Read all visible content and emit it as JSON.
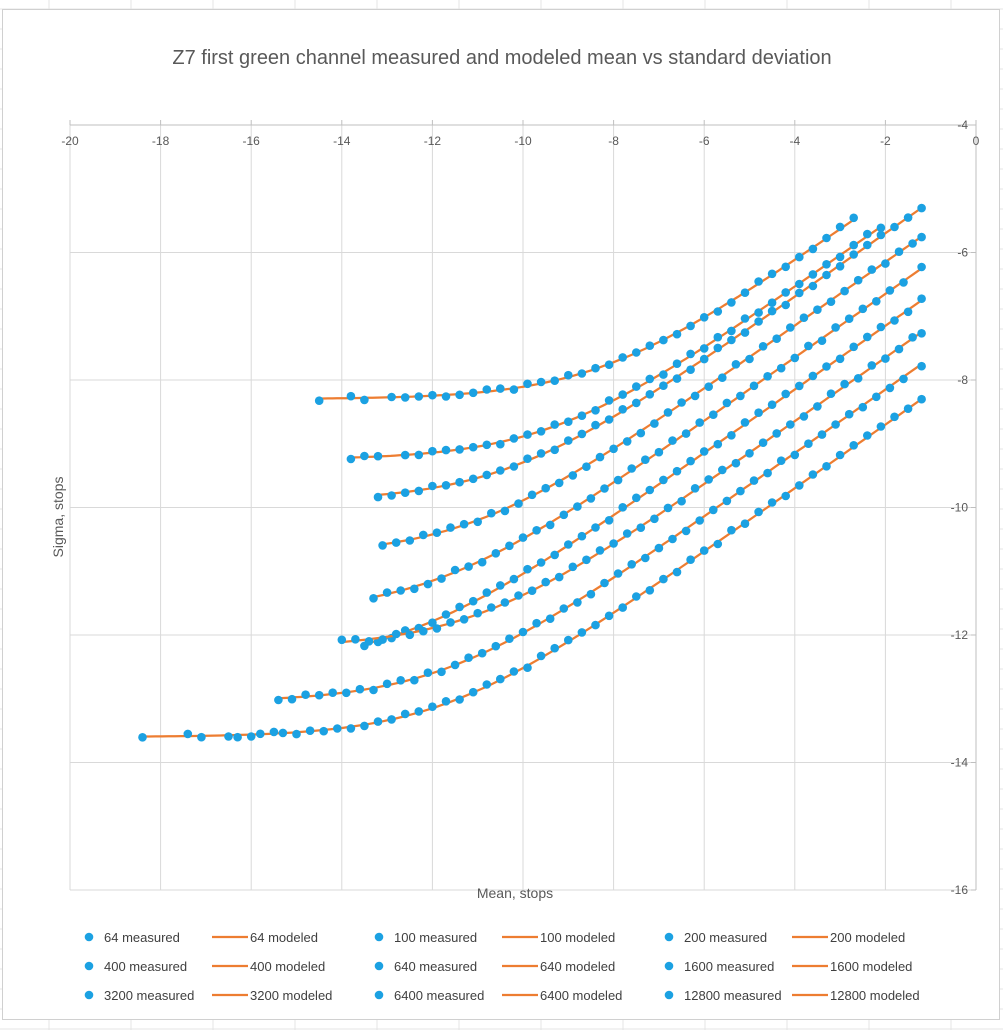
{
  "chart_data": {
    "type": "scatter",
    "title": "Z7 first green channel measured and modeled mean vs standard deviation",
    "xlabel": "Mean, stops",
    "ylabel": "Sigma, stops",
    "xlim": [
      -20,
      0
    ],
    "ylim": [
      -16,
      -4
    ],
    "x_ticks": [
      "-20",
      "-18",
      "-16",
      "-14",
      "-12",
      "-10",
      "-8",
      "-6",
      "-4",
      "-2",
      "0"
    ],
    "y_ticks": [
      "-4",
      "-6",
      "-8",
      "-10",
      "-12",
      "-14",
      "-16"
    ],
    "x_axis_position": "top",
    "y_axis_position": "right",
    "grid": true,
    "legend_position": "bottom",
    "colors": {
      "measured": "#1ba1e2",
      "modeled": "#ed7d31"
    },
    "legend": [
      {
        "label": "64 measured",
        "kind": "marker"
      },
      {
        "label": "64 modeled",
        "kind": "line"
      },
      {
        "label": "100 measured",
        "kind": "marker"
      },
      {
        "label": "100 modeled",
        "kind": "line"
      },
      {
        "label": "200 measured",
        "kind": "marker"
      },
      {
        "label": "200 modeled",
        "kind": "line"
      },
      {
        "label": "400 measured",
        "kind": "marker"
      },
      {
        "label": "400 modeled",
        "kind": "line"
      },
      {
        "label": "640 measured",
        "kind": "marker"
      },
      {
        "label": "640 modeled",
        "kind": "line"
      },
      {
        "label": "1600 measured",
        "kind": "marker"
      },
      {
        "label": "1600 modeled",
        "kind": "line"
      },
      {
        "label": "3200 measured",
        "kind": "marker"
      },
      {
        "label": "3200 modeled",
        "kind": "line"
      },
      {
        "label": "6400 measured",
        "kind": "marker"
      },
      {
        "label": "6400 modeled",
        "kind": "line"
      },
      {
        "label": "12800 measured",
        "kind": "marker"
      },
      {
        "label": "12800 modeled",
        "kind": "line"
      }
    ],
    "series": [
      {
        "iso": "64",
        "floor": -8.3,
        "top_mean": -2.7,
        "top_sigma": -5.5,
        "min_mean": -14.5,
        "measured_x": [
          -14.5,
          -13.8,
          -13.5,
          -12.9,
          -12.6,
          -12.3,
          -12.0,
          -11.7,
          -11.4,
          -11.1,
          -10.8,
          -10.5,
          -10.2,
          -9.9,
          -9.6,
          -9.3,
          -9.0,
          -8.7,
          -8.4,
          -8.1,
          -7.8,
          -7.5,
          -7.2,
          -6.9,
          -6.6,
          -6.3,
          -6.0,
          -5.7,
          -5.4,
          -5.1,
          -4.8,
          -4.5,
          -4.2,
          -3.9,
          -3.6,
          -3.3,
          -3.0,
          -2.7
        ]
      },
      {
        "iso": "100",
        "floor": -9.25,
        "top_mean": -2.1,
        "top_sigma": -5.6,
        "min_mean": -13.8,
        "measured_x": [
          -13.8,
          -13.5,
          -13.2,
          -12.6,
          -12.3,
          -12.0,
          -11.7,
          -11.4,
          -11.1,
          -10.8,
          -10.5,
          -10.2,
          -9.9,
          -9.6,
          -9.3,
          -9.0,
          -8.7,
          -8.4,
          -8.1,
          -7.8,
          -7.5,
          -7.2,
          -6.9,
          -6.6,
          -6.3,
          -6.0,
          -5.7,
          -5.4,
          -5.1,
          -4.8,
          -4.5,
          -4.2,
          -3.9,
          -3.6,
          -3.3,
          -3.0,
          -2.7,
          -2.4,
          -2.1
        ]
      },
      {
        "iso": "200",
        "floor": -9.9,
        "top_mean": -1.2,
        "top_sigma": -5.3,
        "min_mean": -13.2,
        "measured_x": [
          -13.2,
          -12.9,
          -12.6,
          -12.3,
          -12.0,
          -11.7,
          -11.4,
          -11.1,
          -10.8,
          -10.5,
          -10.2,
          -9.9,
          -9.6,
          -9.3,
          -9.0,
          -8.7,
          -8.4,
          -8.1,
          -7.8,
          -7.5,
          -7.2,
          -6.9,
          -6.6,
          -6.3,
          -6.0,
          -5.7,
          -5.4,
          -5.1,
          -4.8,
          -4.5,
          -4.2,
          -3.9,
          -3.6,
          -3.3,
          -3.0,
          -2.7,
          -2.4,
          -2.1,
          -1.8,
          -1.5,
          -1.2
        ]
      },
      {
        "iso": "400",
        "floor": -10.75,
        "top_mean": -1.2,
        "top_sigma": -5.75,
        "min_mean": -13.1,
        "measured_x": [
          -13.1,
          -12.8,
          -12.5,
          -12.2,
          -11.9,
          -11.6,
          -11.3,
          -11.0,
          -10.7,
          -10.4,
          -10.1,
          -9.8,
          -9.5,
          -9.2,
          -8.9,
          -8.6,
          -8.3,
          -8.0,
          -7.7,
          -7.4,
          -7.1,
          -6.8,
          -6.5,
          -6.2,
          -5.9,
          -5.6,
          -5.3,
          -5.0,
          -4.7,
          -4.4,
          -4.1,
          -3.8,
          -3.5,
          -3.2,
          -2.9,
          -2.6,
          -2.3,
          -2.0,
          -1.7,
          -1.4,
          -1.2
        ]
      },
      {
        "iso": "640",
        "floor": -11.65,
        "top_mean": -1.2,
        "top_sigma": -6.25,
        "min_mean": -13.3,
        "measured_x": [
          -13.3,
          -13.0,
          -12.7,
          -12.4,
          -12.1,
          -11.8,
          -11.5,
          -11.2,
          -10.9,
          -10.6,
          -10.3,
          -10.0,
          -9.7,
          -9.4,
          -9.1,
          -8.8,
          -8.5,
          -8.2,
          -7.9,
          -7.6,
          -7.3,
          -7.0,
          -6.7,
          -6.4,
          -6.1,
          -5.8,
          -5.5,
          -5.2,
          -4.9,
          -4.6,
          -4.3,
          -4.0,
          -3.7,
          -3.4,
          -3.1,
          -2.8,
          -2.5,
          -2.2,
          -1.9,
          -1.6,
          -1.2
        ]
      },
      {
        "iso": "1600",
        "floor": -12.45,
        "top_mean": -1.2,
        "top_sigma": -6.75,
        "min_mean": -13.5,
        "measured_x": [
          -13.5,
          -13.2,
          -12.9,
          -12.6,
          -12.3,
          -12.0,
          -11.7,
          -11.4,
          -11.1,
          -10.8,
          -10.5,
          -10.2,
          -9.9,
          -9.6,
          -9.3,
          -9.0,
          -8.7,
          -8.4,
          -8.1,
          -7.8,
          -7.5,
          -7.2,
          -6.9,
          -6.6,
          -6.3,
          -6.0,
          -5.7,
          -5.4,
          -5.1,
          -4.8,
          -4.5,
          -4.2,
          -3.9,
          -3.6,
          -3.3,
          -3.0,
          -2.7,
          -2.4,
          -2.1,
          -1.8,
          -1.5,
          -1.2
        ]
      },
      {
        "iso": "3200",
        "floor": -12.2,
        "top_mean": -1.2,
        "top_sigma": -7.25,
        "min_mean": -14.0,
        "measured_x": [
          -14.0,
          -13.7,
          -13.4,
          -13.1,
          -12.8,
          -12.5,
          -12.2,
          -11.9,
          -11.6,
          -11.3,
          -11.0,
          -10.7,
          -10.4,
          -10.1,
          -9.8,
          -9.5,
          -9.2,
          -8.9,
          -8.6,
          -8.3,
          -8.0,
          -7.7,
          -7.4,
          -7.1,
          -6.8,
          -6.5,
          -6.2,
          -5.9,
          -5.6,
          -5.3,
          -5.0,
          -4.7,
          -4.4,
          -4.1,
          -3.8,
          -3.5,
          -3.2,
          -2.9,
          -2.6,
          -2.3,
          -2.0,
          -1.7,
          -1.4,
          -1.2
        ]
      },
      {
        "iso": "6400",
        "floor": -13.05,
        "top_mean": -1.2,
        "top_sigma": -7.75,
        "min_mean": -15.4,
        "measured_x": [
          -15.4,
          -15.1,
          -14.8,
          -14.5,
          -14.2,
          -13.9,
          -13.6,
          -13.3,
          -13.0,
          -12.7,
          -12.4,
          -12.1,
          -11.8,
          -11.5,
          -11.2,
          -10.9,
          -10.6,
          -10.3,
          -10.0,
          -9.7,
          -9.4,
          -9.1,
          -8.8,
          -8.5,
          -8.2,
          -7.9,
          -7.6,
          -7.3,
          -7.0,
          -6.7,
          -6.4,
          -6.1,
          -5.8,
          -5.5,
          -5.2,
          -4.9,
          -4.6,
          -4.3,
          -4.0,
          -3.7,
          -3.4,
          -3.1,
          -2.8,
          -2.5,
          -2.2,
          -1.9,
          -1.6,
          -1.2
        ]
      },
      {
        "iso": "12800",
        "floor": -13.6,
        "top_mean": -1.2,
        "top_sigma": -8.3,
        "min_mean": -18.4,
        "measured_x": [
          -18.4,
          -17.4,
          -17.1,
          -16.5,
          -16.3,
          -16.0,
          -15.8,
          -15.5,
          -15.3,
          -15.0,
          -14.7,
          -14.4,
          -14.1,
          -13.8,
          -13.5,
          -13.2,
          -12.9,
          -12.6,
          -12.3,
          -12.0,
          -11.7,
          -11.4,
          -11.1,
          -10.8,
          -10.5,
          -10.2,
          -9.9,
          -9.6,
          -9.3,
          -9.0,
          -8.7,
          -8.4,
          -8.1,
          -7.8,
          -7.5,
          -7.2,
          -6.9,
          -6.6,
          -6.3,
          -6.0,
          -5.7,
          -5.4,
          -5.1,
          -4.8,
          -4.5,
          -4.2,
          -3.9,
          -3.6,
          -3.3,
          -3.0,
          -2.7,
          -2.4,
          -2.1,
          -1.8,
          -1.5,
          -1.2
        ]
      }
    ]
  }
}
